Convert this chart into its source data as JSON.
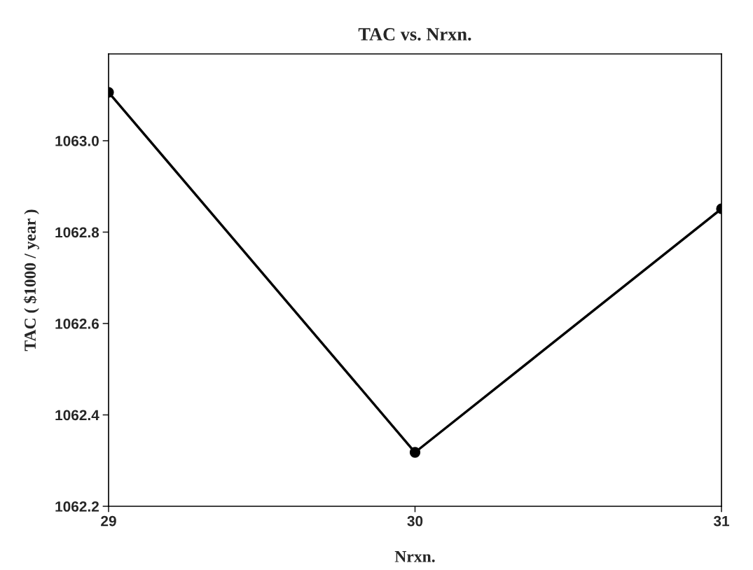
{
  "chart_data": {
    "type": "line",
    "title": "TAC vs. Nrxn.",
    "xlabel": "Nrxn.",
    "ylabel": "TAC ( $1000 / year )",
    "x": [
      29,
      30,
      31
    ],
    "series": [
      {
        "color": "#000000",
        "values": [
          1063.106,
          1062.318,
          1062.851
        ]
      }
    ],
    "xlim": [
      29,
      31
    ],
    "xticks": [
      29,
      30,
      31
    ],
    "ylim": [
      1062.2,
      1063.19
    ],
    "yticks": [
      {
        "value": 1062.2,
        "label": "1062.2"
      },
      {
        "value": 1062.4,
        "label": "1062.4"
      },
      {
        "value": 1062.6,
        "label": "1062.6"
      },
      {
        "value": 1062.8,
        "label": "1062.8"
      },
      {
        "value": 1063.0,
        "label": "1063.0"
      }
    ],
    "marker": "circle",
    "line_style": "solid",
    "grid": false
  }
}
